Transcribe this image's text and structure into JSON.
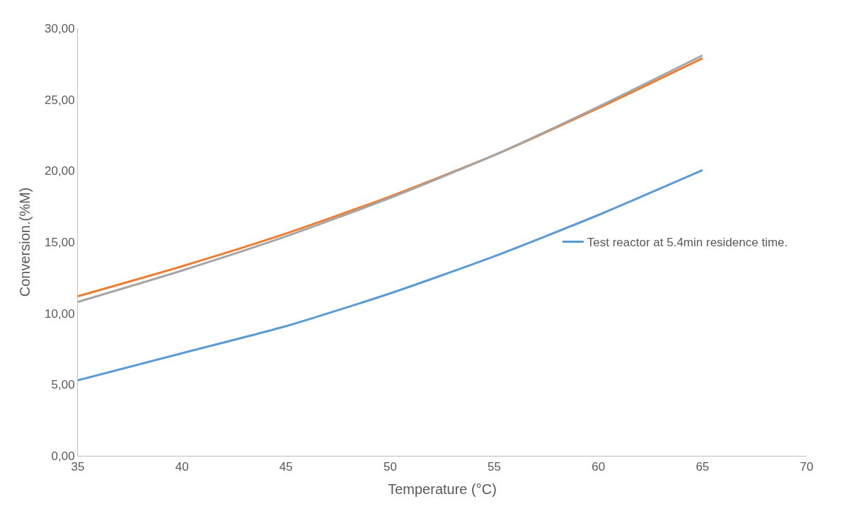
{
  "chart_data": {
    "type": "line",
    "xlabel": "Temperature (°C)",
    "ylabel": "Conversion.(%M)",
    "x": [
      35,
      40,
      45,
      50,
      55,
      60,
      65
    ],
    "series": [
      {
        "name": "Test reactor at 5.4min residence time.",
        "color": "#5b9bd5",
        "values": [
          5.3,
          7.2,
          9.1,
          11.4,
          14.0,
          16.9,
          20.05
        ]
      },
      {
        "color": "#ed7d31",
        "values": [
          11.2,
          13.3,
          15.6,
          18.2,
          21.1,
          24.4,
          27.9
        ]
      },
      {
        "color": "#a5a5a5",
        "values": [
          10.8,
          13.0,
          15.4,
          18.1,
          21.1,
          24.5,
          28.1
        ]
      }
    ],
    "xlim": [
      35,
      70
    ],
    "xticks": [
      35,
      40,
      45,
      50,
      55,
      60,
      65,
      70
    ],
    "ylim": [
      0,
      30
    ],
    "yticks": [
      {
        "value": 0,
        "label": "0,00"
      },
      {
        "value": 5,
        "label": "5,00"
      },
      {
        "value": 10,
        "label": "10,00"
      },
      {
        "value": 15,
        "label": "15,00"
      },
      {
        "value": 20,
        "label": "20,00"
      },
      {
        "value": 25,
        "label": "25,00"
      },
      {
        "value": 30,
        "label": "30,00"
      }
    ],
    "grid": false,
    "legend": "right",
    "marker": "none",
    "line_style": "solid"
  }
}
